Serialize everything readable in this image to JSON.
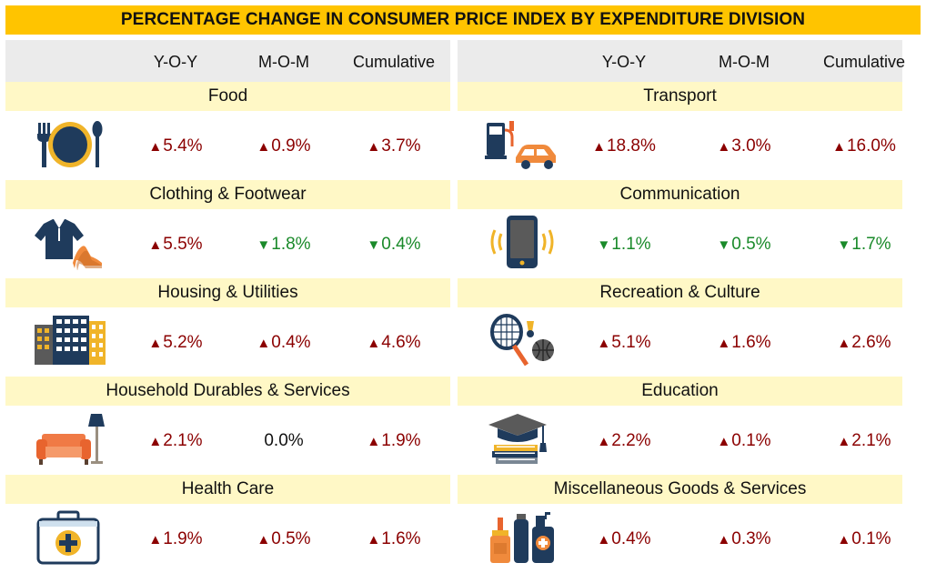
{
  "title": "PERCENTAGE CHANGE IN CONSUMER PRICE INDEX BY EXPENDITURE DIVISION",
  "columns": [
    "Y-O-Y",
    "M-O-M",
    "Cumulative"
  ],
  "colors": {
    "title_bg": "#ffc400",
    "category_bg": "#fff8c6",
    "header_bg": "#ebebeb",
    "increase": "#8b0000",
    "decrease": "#1a8a2a"
  },
  "chart_data": {
    "type": "table",
    "title": "PERCENTAGE CHANGE IN CONSUMER PRICE INDEX BY EXPENDITURE DIVISION",
    "columns": [
      "Y-O-Y",
      "M-O-M",
      "Cumulative"
    ],
    "unit": "%",
    "divisions": [
      {
        "name": "Food",
        "icon": "plate-cutlery-icon",
        "yoy": 5.4,
        "mom": 0.9,
        "cumulative": 3.7,
        "yoy_label": "5.4%",
        "mom_label": "0.9%",
        "cum_label": "3.7%",
        "yoy_dir": "up",
        "mom_dir": "up",
        "cum_dir": "up"
      },
      {
        "name": "Clothing & Footwear",
        "icon": "shirt-heels-icon",
        "yoy": 5.5,
        "mom": -1.8,
        "cumulative": -0.4,
        "yoy_label": "5.5%",
        "mom_label": "1.8%",
        "cum_label": "0.4%",
        "yoy_dir": "up",
        "mom_dir": "down",
        "cum_dir": "down"
      },
      {
        "name": "Housing & Utilities",
        "icon": "buildings-icon",
        "yoy": 5.2,
        "mom": 0.4,
        "cumulative": 4.6,
        "yoy_label": "5.2%",
        "mom_label": "0.4%",
        "cum_label": "4.6%",
        "yoy_dir": "up",
        "mom_dir": "up",
        "cum_dir": "up"
      },
      {
        "name": "Household Durables & Services",
        "icon": "sofa-lamp-icon",
        "yoy": 2.1,
        "mom": 0.0,
        "cumulative": 1.9,
        "yoy_label": "2.1%",
        "mom_label": "0.0%",
        "cum_label": "1.9%",
        "yoy_dir": "up",
        "mom_dir": "flat",
        "cum_dir": "up"
      },
      {
        "name": "Health Care",
        "icon": "first-aid-kit-icon",
        "yoy": 1.9,
        "mom": 0.5,
        "cumulative": 1.6,
        "yoy_label": "1.9%",
        "mom_label": "0.5%",
        "cum_label": "1.6%",
        "yoy_dir": "up",
        "mom_dir": "up",
        "cum_dir": "up"
      },
      {
        "name": "Transport",
        "icon": "fuel-pump-car-icon",
        "yoy": 18.8,
        "mom": 3.0,
        "cumulative": 16.0,
        "yoy_label": "18.8%",
        "mom_label": "3.0%",
        "cum_label": "16.0%",
        "yoy_dir": "up",
        "mom_dir": "up",
        "cum_dir": "up"
      },
      {
        "name": "Communication",
        "icon": "phone-vibrate-icon",
        "yoy": -1.1,
        "mom": -0.5,
        "cumulative": -1.7,
        "yoy_label": "1.1%",
        "mom_label": "0.5%",
        "cum_label": "1.7%",
        "yoy_dir": "down",
        "mom_dir": "down",
        "cum_dir": "down"
      },
      {
        "name": "Recreation & Culture",
        "icon": "racket-ball-icon",
        "yoy": 5.1,
        "mom": 1.6,
        "cumulative": 2.6,
        "yoy_label": "5.1%",
        "mom_label": "1.6%",
        "cum_label": "2.6%",
        "yoy_dir": "up",
        "mom_dir": "up",
        "cum_dir": "up"
      },
      {
        "name": "Education",
        "icon": "graduation-cap-books-icon",
        "yoy": 2.2,
        "mom": 0.1,
        "cumulative": 2.1,
        "yoy_label": "2.2%",
        "mom_label": "0.1%",
        "cum_label": "2.1%",
        "yoy_dir": "up",
        "mom_dir": "up",
        "cum_dir": "up"
      },
      {
        "name": "Miscellaneous Goods & Services",
        "icon": "cosmetics-bottles-icon",
        "yoy": 0.4,
        "mom": 0.3,
        "cumulative": 0.1,
        "yoy_label": "0.4%",
        "mom_label": "0.3%",
        "cum_label": "0.1%",
        "yoy_dir": "up",
        "mom_dir": "up",
        "cum_dir": "up"
      }
    ]
  }
}
